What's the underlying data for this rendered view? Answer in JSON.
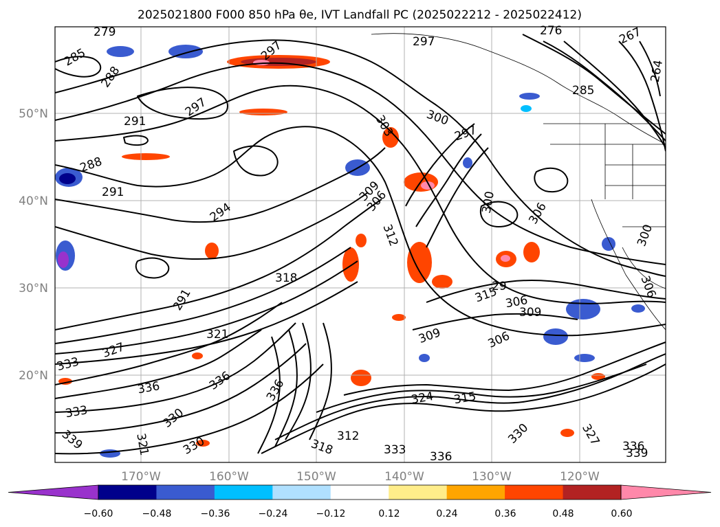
{
  "figure": {
    "title": "2025021800 F000 850 hPa θe, IVT Landfall PC (2025022212 - 2025022412)"
  },
  "map": {
    "lon_ticks": [
      "170°W",
      "160°W",
      "150°W",
      "140°W",
      "130°W",
      "120°W"
    ],
    "lat_ticks": [
      "50°N",
      "40°N",
      "30°N",
      "20°N"
    ],
    "grid": true,
    "contour_labels": [
      "279",
      "285",
      "288",
      "291",
      "288",
      "291",
      "294",
      "297",
      "297",
      "297",
      "276",
      "267",
      "264",
      "285",
      "300",
      "297",
      "303",
      "300",
      "306",
      "300",
      "29",
      "309",
      "306",
      "306",
      "306",
      "309",
      "315",
      "312",
      "318",
      "291",
      "306",
      "309",
      "321",
      "327",
      "333",
      "336",
      "336",
      "339",
      "330",
      "333",
      "330",
      "336",
      "324",
      "321",
      "315",
      "330",
      "333",
      "336",
      "327",
      "336",
      "339",
      "312",
      "318"
    ]
  },
  "colorbar": {
    "ticks": [
      "−0.60",
      "−0.48",
      "−0.36",
      "−0.24",
      "−0.12",
      "0.12",
      "0.24",
      "0.36",
      "0.48",
      "0.60"
    ],
    "colors": [
      "#9932cc",
      "#00008b",
      "#3a5bd0",
      "#00bfff",
      "#b0e0ff",
      "#ffffff",
      "#ffed8a",
      "#ffa500",
      "#ff4500",
      "#b22222",
      "#ff88aa"
    ],
    "extend": "both"
  }
}
